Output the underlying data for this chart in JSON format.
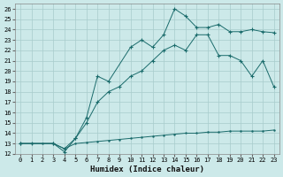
{
  "xlabel": "Humidex (Indice chaleur)",
  "bg_color": "#cce9e9",
  "line_color": "#1a6b6b",
  "grid_color": "#a8cccc",
  "xlim": [
    -0.5,
    23.5
  ],
  "ylim": [
    12,
    26.5
  ],
  "xticks": [
    0,
    1,
    2,
    3,
    4,
    5,
    6,
    7,
    8,
    9,
    10,
    11,
    12,
    13,
    14,
    15,
    16,
    17,
    18,
    19,
    20,
    21,
    22,
    23
  ],
  "yticks": [
    12,
    13,
    14,
    15,
    16,
    17,
    18,
    19,
    20,
    21,
    22,
    23,
    24,
    25,
    26
  ],
  "line_flat": {
    "x": [
      0,
      1,
      2,
      3,
      4,
      5,
      6,
      7,
      8,
      9,
      10,
      11,
      12,
      13,
      14,
      15,
      16,
      17,
      18,
      19,
      20,
      21,
      22,
      23
    ],
    "y": [
      13.0,
      13.0,
      13.0,
      13.0,
      12.5,
      13.0,
      13.1,
      13.2,
      13.3,
      13.4,
      13.5,
      13.6,
      13.7,
      13.8,
      13.9,
      14.0,
      14.0,
      14.1,
      14.1,
      14.2,
      14.2,
      14.2,
      14.2,
      14.3
    ]
  },
  "line_mid": {
    "x": [
      0,
      1,
      3,
      4,
      5,
      6,
      7,
      8,
      9,
      10,
      11,
      12,
      13,
      14,
      15,
      16,
      17,
      18,
      19,
      20,
      21,
      22,
      23
    ],
    "y": [
      13.0,
      13.0,
      13.0,
      12.5,
      13.5,
      15.0,
      17.0,
      18.0,
      18.5,
      19.5,
      20.0,
      21.0,
      22.0,
      22.5,
      22.0,
      23.5,
      23.5,
      21.5,
      21.5,
      21.0,
      19.5,
      21.0,
      18.5
    ]
  },
  "line_top": {
    "x": [
      0,
      3,
      4,
      5,
      6,
      7,
      8,
      10,
      11,
      12,
      13,
      14,
      15,
      16,
      17,
      18,
      19,
      20,
      21,
      22,
      23
    ],
    "y": [
      13.0,
      13.0,
      12.2,
      13.5,
      15.5,
      19.5,
      19.0,
      22.3,
      23.0,
      22.3,
      23.5,
      26.0,
      25.3,
      24.2,
      24.2,
      24.5,
      23.8,
      23.8,
      24.0,
      23.8,
      23.7
    ]
  }
}
